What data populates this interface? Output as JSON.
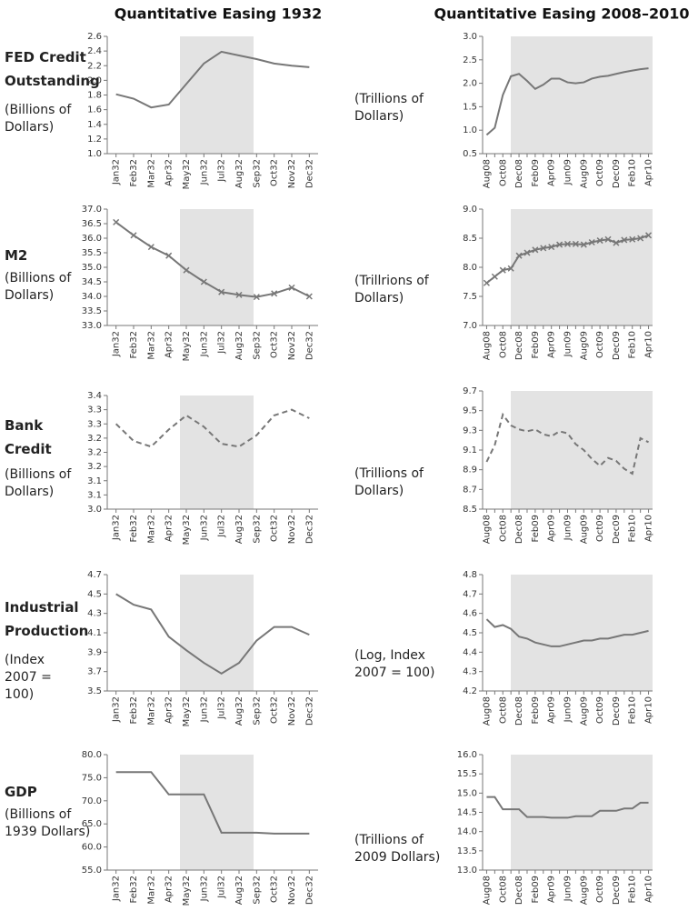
{
  "columns": [
    "Quantitative Easing 1932",
    "Quantitative Easing 2008–2010"
  ],
  "rows": [
    {
      "label": "FED Credit Outstanding"
    },
    {
      "label": "M2"
    },
    {
      "label": "Bank Credit"
    },
    {
      "label": "Industrial Production"
    },
    {
      "label": "GDP"
    }
  ],
  "chart_data": [
    {
      "type": "line",
      "ylabel": "(Billions of Dollars)",
      "color": "#777777",
      "line_style": "solid",
      "marker": "none",
      "categories": [
        "Jan32",
        "Feb32",
        "Mar32",
        "Apr32",
        "May32",
        "Jun32",
        "Jul32",
        "Aug32",
        "Sep32",
        "Oct32",
        "Nov32",
        "Dec32"
      ],
      "values": [
        1.81,
        1.75,
        1.63,
        1.67,
        1.95,
        2.23,
        2.39,
        2.34,
        2.29,
        2.23,
        2.2,
        2.18
      ],
      "ylim": [
        1.0,
        2.6
      ],
      "yticks": [
        {
          "value": 1.0,
          "label": "1.0"
        },
        1.2,
        1.4,
        1.6,
        1.8,
        {
          "value": 2.0,
          "label": "2.0"
        },
        2.2,
        2.4,
        2.6
      ]
    },
    {
      "type": "line",
      "ylabel": "(Trillions of Dollars)",
      "color": "#777777",
      "line_style": "solid",
      "marker": "none",
      "categories": [
        "Aug08",
        null,
        "Oct08",
        null,
        "Dec08",
        null,
        "Feb09",
        null,
        "Apr09",
        null,
        "Jun09",
        null,
        "Aug09",
        null,
        "Oct09",
        null,
        "Dec09",
        null,
        "Feb10",
        null,
        "Apr10"
      ],
      "values": [
        0.9,
        1.05,
        1.75,
        2.15,
        2.2,
        2.05,
        1.88,
        1.97,
        2.1,
        2.1,
        2.02,
        2.0,
        2.02,
        2.1,
        2.14,
        2.16,
        2.2,
        2.24,
        2.27,
        2.3,
        2.32
      ],
      "ylim": [
        0.5,
        3.0
      ],
      "yticks": [
        0.5,
        {
          "value": 1.0,
          "label": "1.0"
        },
        1.5,
        {
          "value": 2.0,
          "label": "2.0"
        },
        2.5,
        {
          "value": 3.0,
          "label": "3.0"
        }
      ]
    },
    {
      "type": "line",
      "ylabel": "(Billions of Dollars)",
      "color": "#777777",
      "line_style": "solid",
      "marker": "x",
      "categories": [
        "Jan32",
        "Feb32",
        "Mar32",
        "Apr32",
        "May32",
        "Jun32",
        "Jul32",
        "Aug32",
        "Sep32",
        "Oct32",
        "Nov32",
        "Dec32"
      ],
      "values": [
        36.55,
        36.1,
        35.7,
        35.4,
        34.9,
        34.5,
        34.15,
        34.05,
        33.98,
        34.1,
        34.3,
        34.0
      ],
      "ylim": [
        33.0,
        37.0
      ],
      "yticks": [
        {
          "value": 33.0,
          "label": "33.0"
        },
        33.5,
        {
          "value": 34.0,
          "label": "34.0"
        },
        34.5,
        {
          "value": 35.0,
          "label": "35.0"
        },
        35.5,
        {
          "value": 36.0,
          "label": "36.0"
        },
        36.5,
        {
          "value": 37.0,
          "label": "37.0"
        }
      ]
    },
    {
      "type": "line",
      "ylabel": "(Trillrions of Dollars)",
      "color": "#777777",
      "line_style": "solid",
      "marker": "x",
      "categories": [
        "Aug08",
        null,
        "Oct08",
        null,
        "Dec08",
        null,
        "Feb09",
        null,
        "Apr09",
        null,
        "Jun09",
        null,
        "Aug09",
        null,
        "Oct09",
        null,
        "Dec09",
        null,
        "Feb10",
        null,
        "Apr10"
      ],
      "values": [
        7.73,
        7.84,
        7.95,
        7.98,
        8.2,
        8.25,
        8.3,
        8.33,
        8.35,
        8.39,
        8.4,
        8.4,
        8.39,
        8.43,
        8.46,
        8.48,
        8.42,
        8.47,
        8.48,
        8.5,
        8.55
      ],
      "ylim": [
        7.0,
        9.0
      ],
      "yticks": [
        {
          "value": 7.0,
          "label": "7.0"
        },
        7.5,
        {
          "value": 8.0,
          "label": "8.0"
        },
        8.5,
        {
          "value": 9.0,
          "label": "9.0"
        }
      ]
    },
    {
      "type": "line",
      "ylabel": "(Billions of Dollars)",
      "color": "#777777",
      "line_style": "dashed",
      "marker": "none",
      "categories": [
        "Jan32",
        "Feb32",
        "Mar32",
        "Apr32",
        "May32",
        "Jun32",
        "Jul32",
        "Aug32",
        "Sep32",
        "Oct32",
        "Nov32",
        "Dec32"
      ],
      "values": [
        3.3,
        3.24,
        3.22,
        3.28,
        3.33,
        3.29,
        3.23,
        3.22,
        3.26,
        3.33,
        3.35,
        3.32
      ],
      "ylim": [
        3.0,
        3.4
      ],
      "yticks": [
        {
          "value": 3.0,
          "label": "3.0"
        },
        {
          "value": 3.05,
          "label": "3.1"
        },
        3.1,
        {
          "value": 3.15,
          "label": "3.2"
        },
        3.2,
        {
          "value": 3.25,
          "label": "3.2"
        },
        3.3,
        {
          "value": 3.35,
          "label": "3.3"
        },
        3.4
      ]
    },
    {
      "type": "line",
      "ylabel": "(Trillions of Dollars)",
      "color": "#777777",
      "line_style": "dashed",
      "marker": "none",
      "categories": [
        "Aug08",
        null,
        "Oct08",
        null,
        "Dec08",
        null,
        "Feb09",
        null,
        "Apr09",
        null,
        "Jun09",
        null,
        "Aug09",
        null,
        "Oct09",
        null,
        "Dec09",
        null,
        "Feb10",
        null,
        "Apr10"
      ],
      "values": [
        8.98,
        9.15,
        9.46,
        9.35,
        9.31,
        9.29,
        9.31,
        9.26,
        9.24,
        9.29,
        9.27,
        9.16,
        9.1,
        9.01,
        8.94,
        9.02,
        8.99,
        8.91,
        8.86,
        9.22,
        9.18
      ],
      "ylim": [
        8.5,
        9.7
      ],
      "yticks": [
        8.5,
        8.7,
        8.9,
        9.1,
        9.3,
        9.5,
        9.7
      ]
    },
    {
      "type": "line",
      "ylabel": "(Index 2007 = 100)",
      "color": "#777777",
      "line_style": "solid",
      "marker": "none",
      "categories": [
        "Jan32",
        "Feb32",
        "Mar32",
        "Apr32",
        "May32",
        "Jun32",
        "Jul32",
        "Aug32",
        "Sep32",
        "Oct32",
        "Nov32",
        "Dec32"
      ],
      "values": [
        4.5,
        4.39,
        4.34,
        4.06,
        3.92,
        3.79,
        3.68,
        3.79,
        4.02,
        4.16,
        4.16,
        4.08
      ],
      "ylim": [
        3.5,
        4.7
      ],
      "yticks": [
        3.5,
        3.7,
        3.9,
        4.1,
        4.3,
        4.5,
        4.7
      ]
    },
    {
      "type": "line",
      "ylabel": "(Log, Index 2007 = 100)",
      "color": "#777777",
      "line_style": "solid",
      "marker": "none",
      "categories": [
        "Aug08",
        null,
        "Oct08",
        null,
        "Dec08",
        null,
        "Feb09",
        null,
        "Apr09",
        null,
        "Jun09",
        null,
        "Aug09",
        null,
        "Oct09",
        null,
        "Dec09",
        null,
        "Feb10",
        null,
        "Apr10"
      ],
      "values": [
        4.57,
        4.53,
        4.54,
        4.52,
        4.48,
        4.47,
        4.45,
        4.44,
        4.43,
        4.43,
        4.44,
        4.45,
        4.46,
        4.46,
        4.47,
        4.47,
        4.48,
        4.49,
        4.49,
        4.5,
        4.51
      ],
      "ylim": [
        4.2,
        4.8
      ],
      "yticks": [
        4.2,
        4.3,
        4.4,
        4.5,
        4.6,
        4.7,
        4.8
      ]
    },
    {
      "type": "line",
      "ylabel": "(Billions of 1939 Dollars)",
      "color": "#777777",
      "line_style": "solid",
      "marker": "none",
      "categories": [
        "Jan32",
        "Feb32",
        "Mar32",
        "Apr32",
        "May32",
        "Jun32",
        "Jul32",
        "Aug32",
        "Sep32",
        "Oct32",
        "Nov32",
        "Dec32"
      ],
      "values": [
        76.2,
        76.2,
        76.2,
        71.4,
        71.4,
        71.4,
        63.1,
        63.1,
        63.1,
        62.9,
        62.9,
        62.9
      ],
      "ylim": [
        55.0,
        80.0
      ],
      "yticks": [
        {
          "value": 55.0,
          "label": "55.0"
        },
        {
          "value": 60.0,
          "label": "60.0"
        },
        {
          "value": 65.0,
          "label": "65.0"
        },
        {
          "value": 70.0,
          "label": "70.0"
        },
        {
          "value": 75.0,
          "label": "75.0"
        },
        {
          "value": 80.0,
          "label": "80.0"
        }
      ]
    },
    {
      "type": "line",
      "ylabel": "(Trillions of 2009 Dollars)",
      "color": "#777777",
      "line_style": "solid",
      "marker": "none",
      "categories": [
        "Aug08",
        null,
        "Oct08",
        null,
        "Dec08",
        null,
        "Feb09",
        null,
        "Apr09",
        null,
        "Jun09",
        null,
        "Aug09",
        null,
        "Oct09",
        null,
        "Dec09",
        null,
        "Feb10",
        null,
        "Apr10"
      ],
      "values": [
        14.9,
        14.9,
        14.58,
        14.58,
        14.58,
        14.38,
        14.38,
        14.38,
        14.36,
        14.36,
        14.36,
        14.4,
        14.4,
        14.4,
        14.54,
        14.54,
        14.54,
        14.6,
        14.6,
        14.75,
        14.75
      ],
      "ylim": [
        13.0,
        16.0
      ],
      "yticks": [
        {
          "value": 13.0,
          "label": "13.0"
        },
        13.5,
        {
          "value": 14.0,
          "label": "14.0"
        },
        14.5,
        {
          "value": 15.0,
          "label": "15.0"
        },
        15.5,
        {
          "value": 16.0,
          "label": "16.0"
        }
      ]
    }
  ]
}
